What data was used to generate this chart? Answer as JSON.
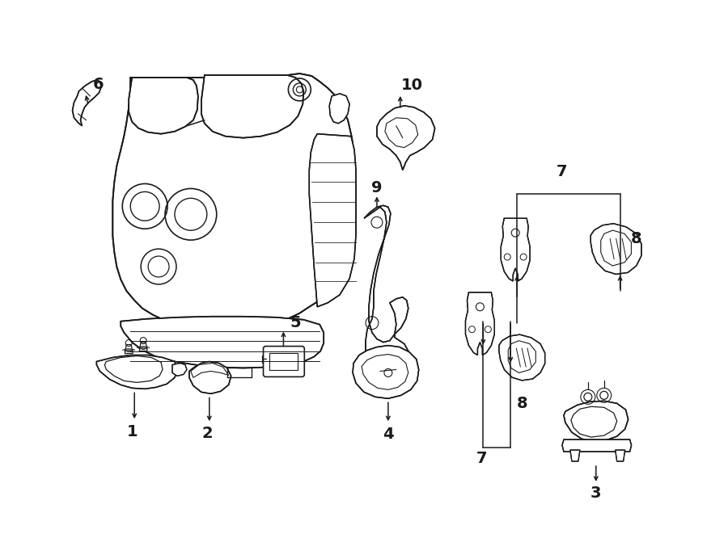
{
  "bg_color": "#ffffff",
  "line_color": "#1a1a1a",
  "fig_width": 9.0,
  "fig_height": 6.61,
  "dpi": 100,
  "lw": 1.2,
  "alw": 1.1,
  "fs": 14
}
